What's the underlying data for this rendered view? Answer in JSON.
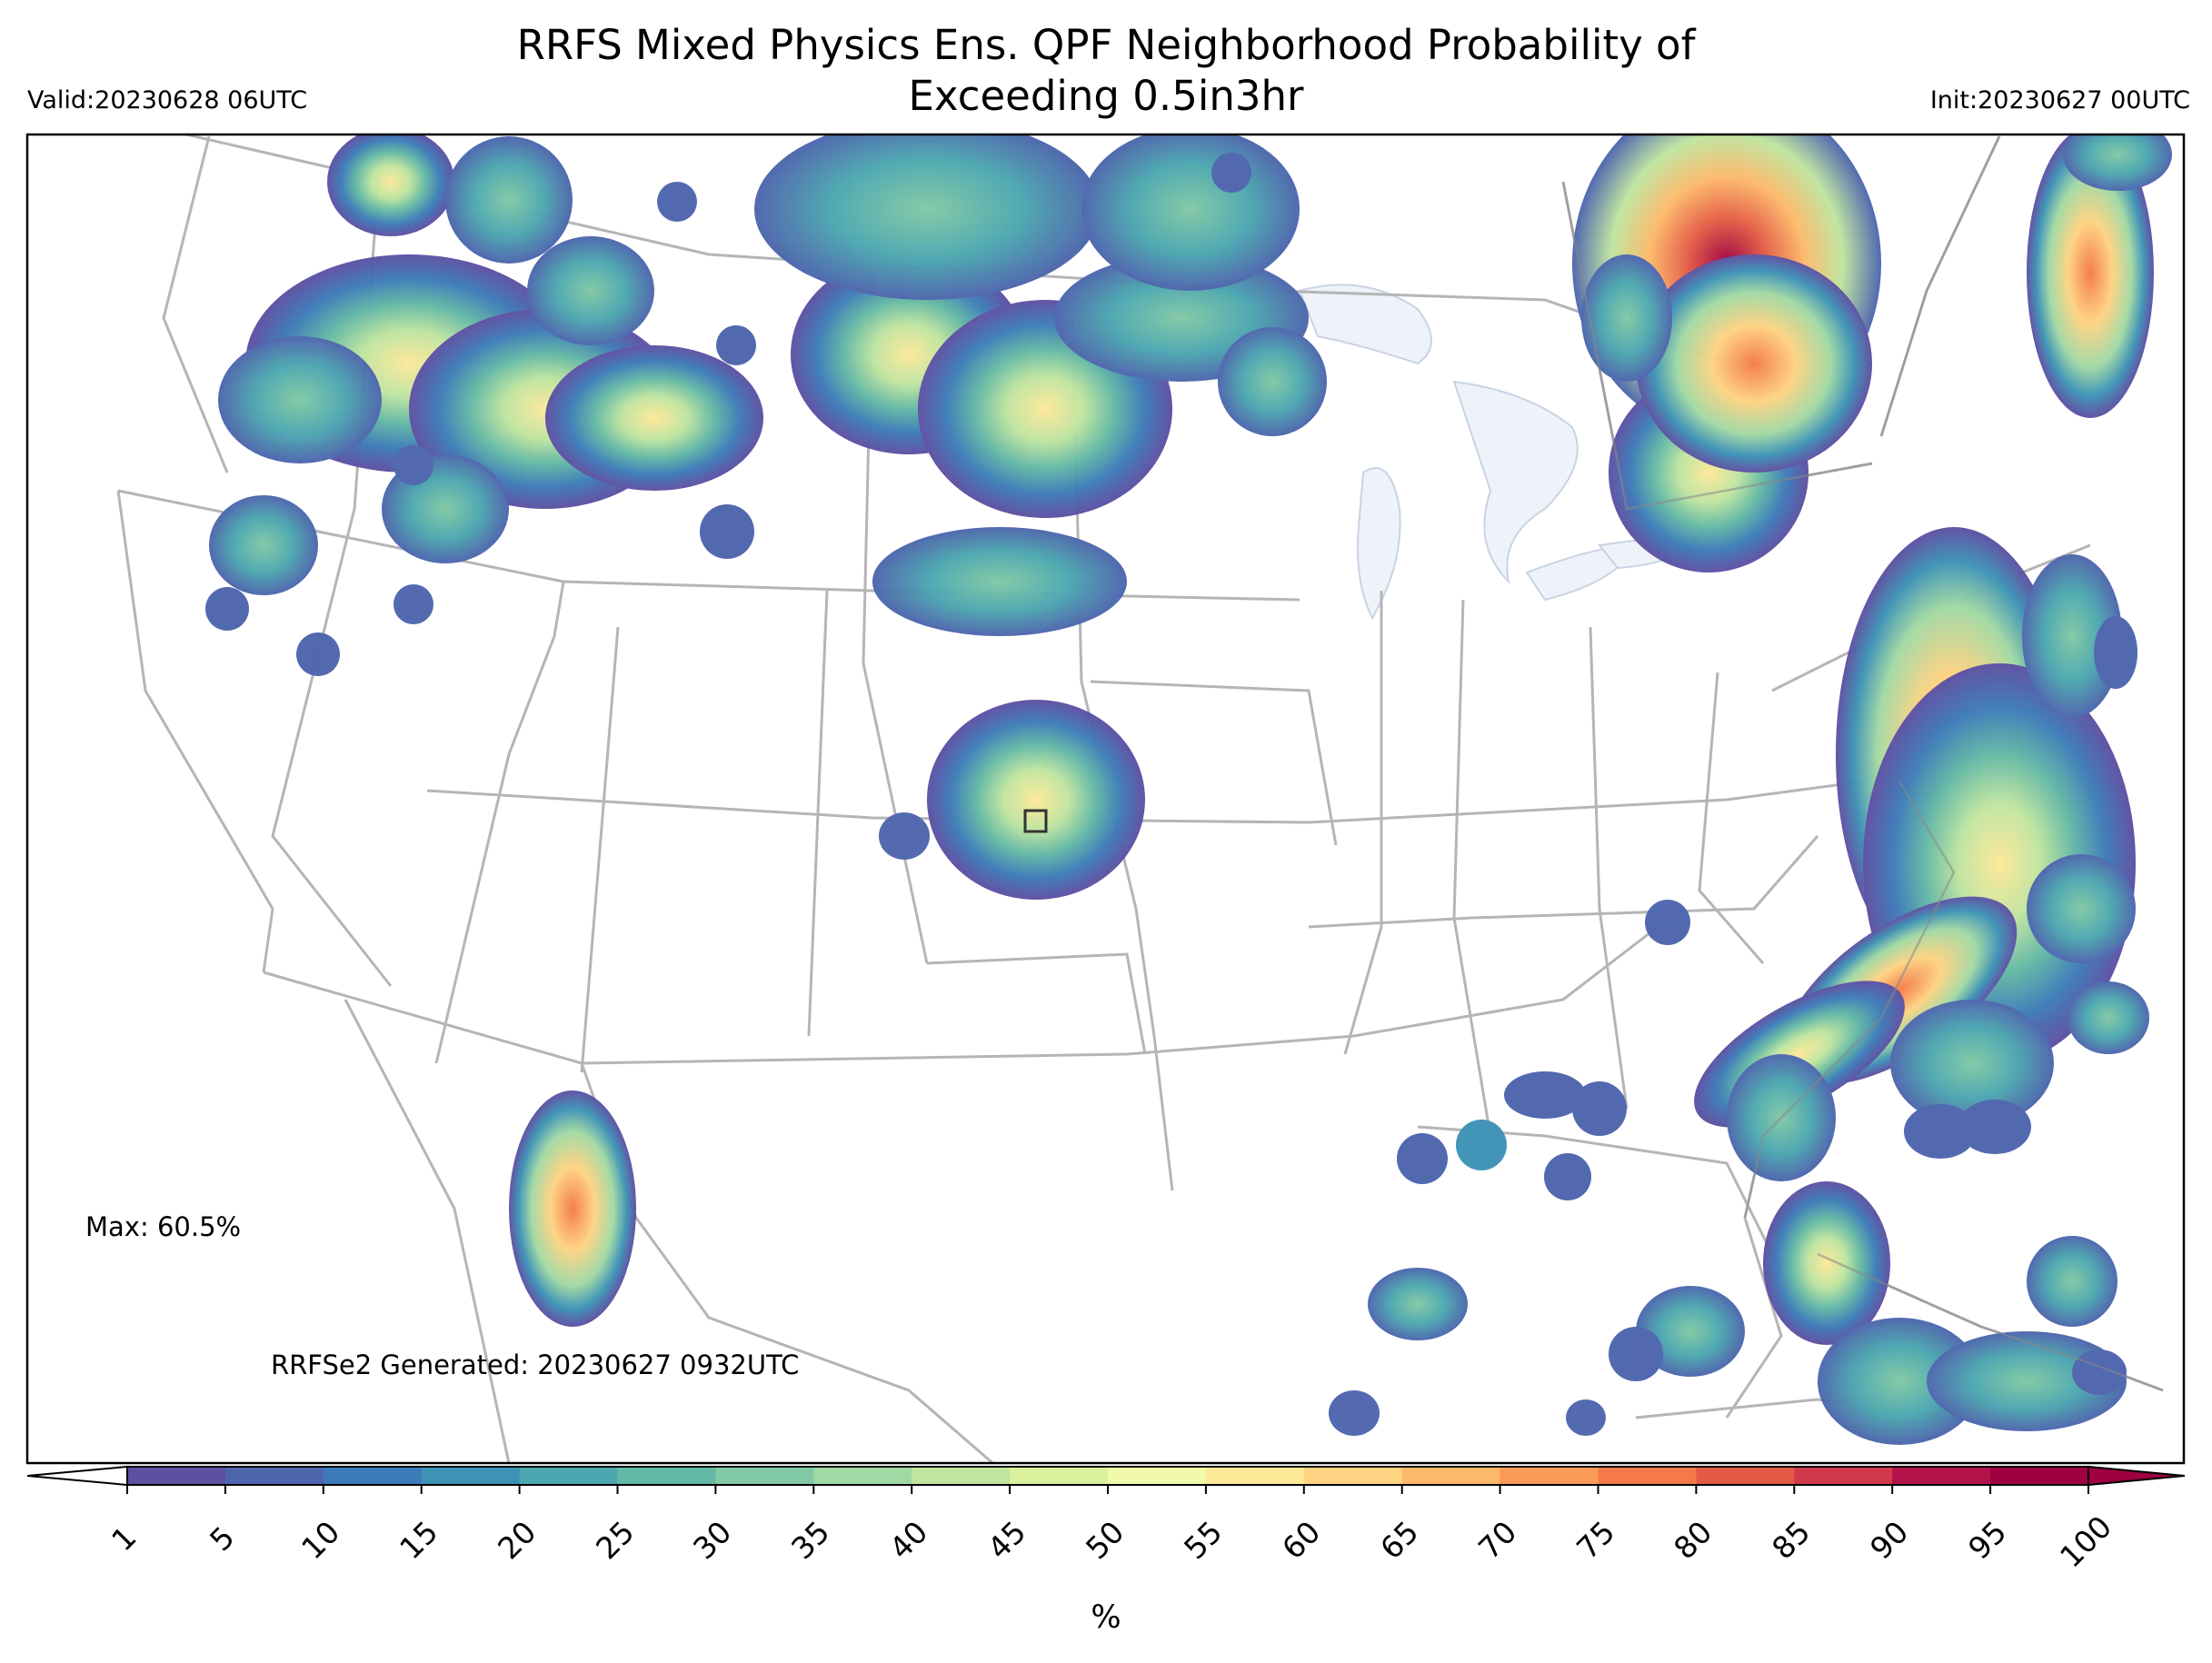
{
  "title": {
    "line1": "RRFS Mixed Physics Ens. QPF Neighborhood Probability of",
    "line2": "Exceeding 0.5in3hr"
  },
  "valid": "Valid:20230628 06UTC",
  "init": "Init:20230627 00UTC",
  "annotations": {
    "max": "Max: 60.5%",
    "generated": "RRFSe2 Generated: 20230627 0932UTC"
  },
  "colorbar": {
    "unit": "%",
    "ticks": [
      "1",
      "5",
      "10",
      "15",
      "20",
      "25",
      "30",
      "35",
      "40",
      "45",
      "50",
      "55",
      "60",
      "65",
      "70",
      "75",
      "80",
      "85",
      "90",
      "95",
      "100"
    ],
    "colors": [
      "#5e4fa2",
      "#4d65ad",
      "#3d7bb8",
      "#3d92b6",
      "#4ca7b0",
      "#63b8a6",
      "#82c9a5",
      "#a1d9a4",
      "#bfe5a0",
      "#dcf19c",
      "#f1f9aa",
      "#fee999",
      "#fed382",
      "#fdb96a",
      "#fa9a58",
      "#f47a49",
      "#e35a45",
      "#d03a4c",
      "#b3134a",
      "#9e0142"
    ],
    "extend": "both"
  },
  "colors": {
    "borders": "#b0b0b0",
    "lakes": "#eef3fa",
    "frame": "#000000"
  }
}
